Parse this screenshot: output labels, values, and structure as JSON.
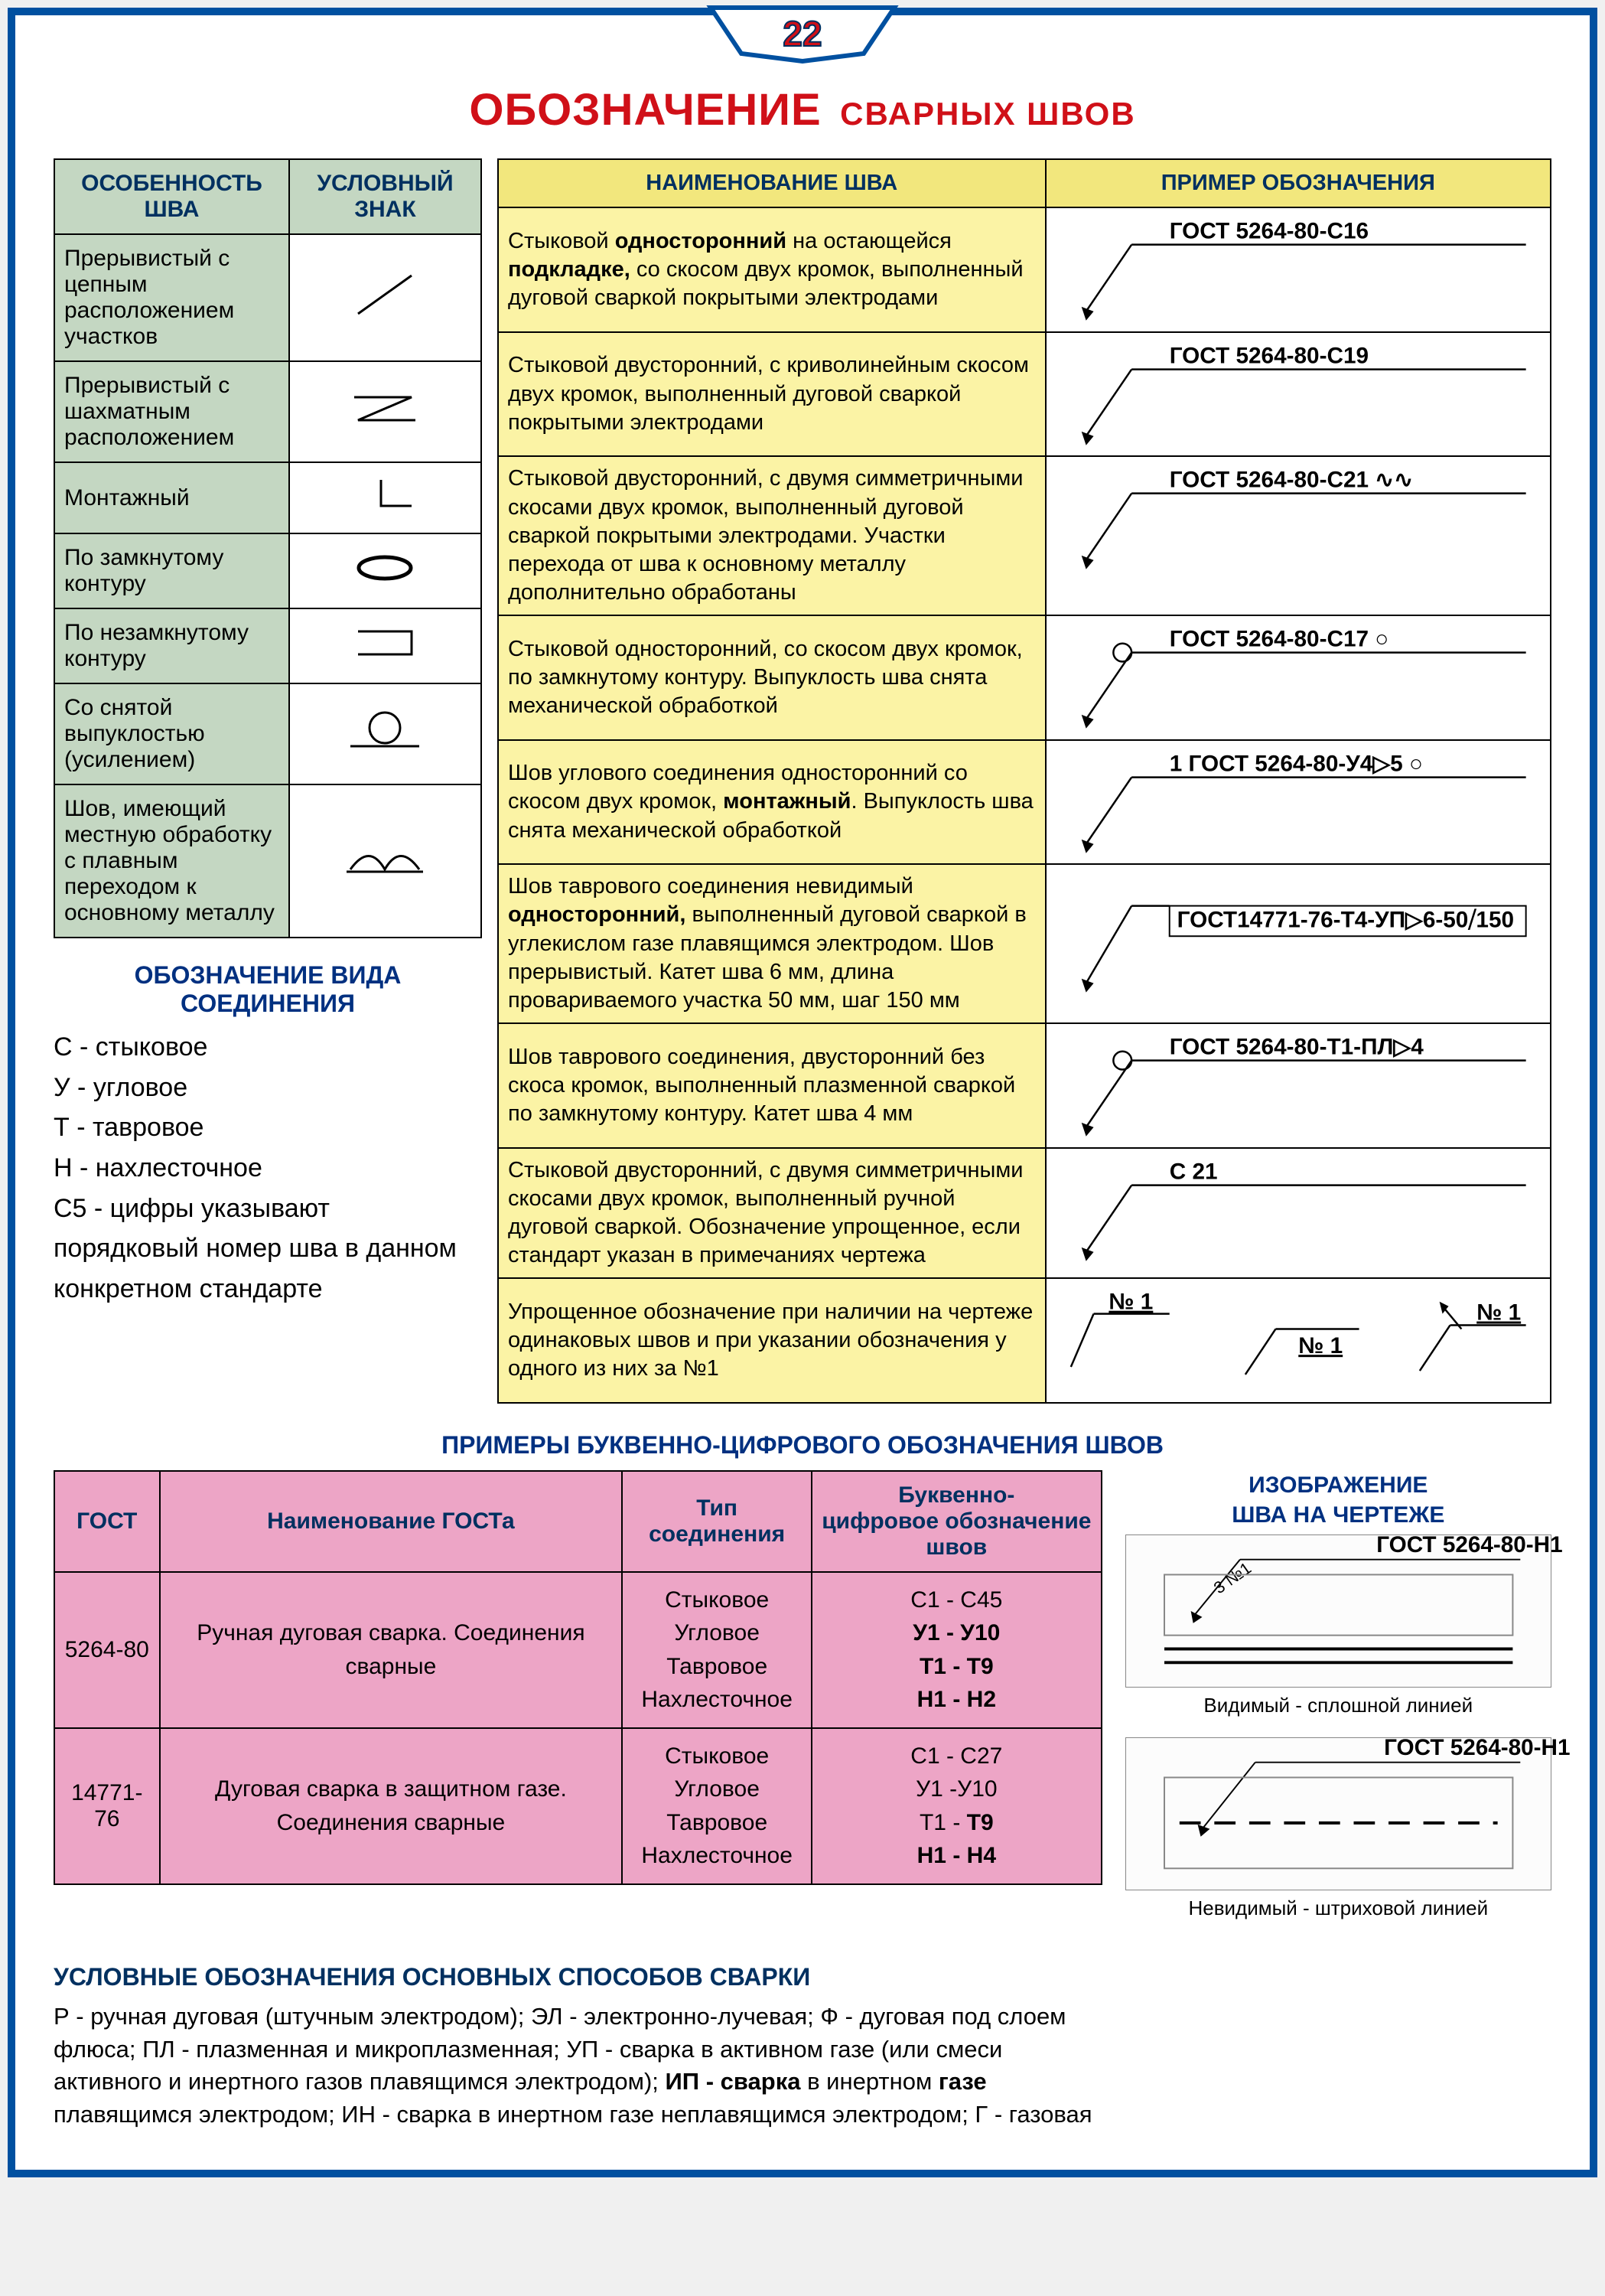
{
  "page_number": "22",
  "colors": {
    "frame": "#0050a0",
    "title_red": "#d01018",
    "header_blue": "#003060",
    "green_bg": "#c4d7c2",
    "yellow_header": "#f2e77d",
    "yellow_cell": "#fbf3a5",
    "pink_bg": "#eda5c6"
  },
  "title_main": "ОБОЗНАЧЕНИЕ",
  "title_sub": "СВАРНЫХ   ШВОВ",
  "green_header_left": "ОСОБЕННОСТЬ ШВА",
  "green_header_right": "УСЛОВНЫЙ ЗНАК",
  "green_rows": [
    {
      "label": "Прерывистый с цепным расположением участков",
      "symbol": "slash"
    },
    {
      "label": "Прерывистый с шахматным расположением",
      "symbol": "zigzag"
    },
    {
      "label": "Монтажный",
      "symbol": "corner"
    },
    {
      "label": "По замкнутому контуру",
      "symbol": "ellipse-filled"
    },
    {
      "label": "По незамкнутому контуру",
      "symbol": "rect-open"
    },
    {
      "label": "Со снятой выпуклостью (усилением)",
      "symbol": "circle-line"
    },
    {
      "label": "Шов, имеющий местную обработку с плавным переходом к основному металлу",
      "symbol": "double-arc"
    }
  ],
  "conn_title": "ОБОЗНАЧЕНИЕ ВИДА СОЕДИНЕНИЯ",
  "conn_list_html": "С - стыковое<br>У - угловое<br>Т - тавровое<br>Н - нахлесточное<br>С5 - цифры указывают порядковый номер шва в данном конкретном стандарте",
  "yellow_header_left": "НАИМЕНОВАНИЕ ШВА",
  "yellow_header_right": "ПРИМЕР ОБОЗНАЧЕНИЯ",
  "yellow_rows": [
    {
      "desc": "Стыковой <b>односторонний</b> на остающейся <b>подкладке,</b> со скосом двух кромок, выполненный дуговой сваркой покрытыми электродами",
      "ex": "ГОСТ 5264-80-С16",
      "leader": "plain"
    },
    {
      "desc": "Стыковой двусторонний, с криволинейным скосом двух кромок, выполненный дуговой сваркой покрытыми электродами",
      "ex": "ГОСТ 5264-80-С19",
      "leader": "plain"
    },
    {
      "desc": "Стыковой двусторонний, с двумя симметричными скосами двух кромок, выполненный дуговой сваркой покрытыми электродами. Участки перехода от шва к основному металлу дополнительно обработаны",
      "ex": "ГОСТ 5264-80-С21 ∿∿",
      "leader": "plain"
    },
    {
      "desc": "Стыковой односторонний, со скосом двух кромок, по замкнутому контуру. Выпуклость шва снята механической обработкой",
      "ex": "ГОСТ 5264-80-С17  ○",
      "leader": "circle"
    },
    {
      "desc": "Шов углового соединения односторонний со скосом двух кромок, <b>монтажный</b>. Выпуклость шва снята механической обработкой",
      "ex": "1   ГОСТ 5264-80-У4▷5  ○",
      "leader": "plain"
    },
    {
      "desc": "Шов таврового соединения невидимый <b>односторонний,</b> выполненный дуговой сваркой в углекислом газе плавящимся электродом. Шов прерывистый. Катет шва 6 мм, длина провариваемого участка 50 мм, шаг 150 мм",
      "ex": "ГОСТ14771-76-Т4-УП▷6-50⧸150",
      "leader": "below-box"
    },
    {
      "desc": "Шов таврового соединения, двусторонний без скоса кромок, выполненный плазменной сваркой по замкнутому контуру. Катет шва 4 мм",
      "ex": "ГОСТ 5264-80-Т1-ПЛ▷4",
      "leader": "circle"
    },
    {
      "desc": "Стыковой двусторонний, с двумя симметричными скосами двух кромок, выполненный ручной дуговой сваркой. Обозначение упрощенное, если стандарт указан в примечаниях чертежа",
      "ex": "С 21",
      "leader": "plain"
    },
    {
      "desc": "Упрощенное обозначение при наличии на чертеже одинаковых швов и при указании обозначения у одного из них за №1",
      "ex": "multi-no1",
      "leader": "multi"
    }
  ],
  "pink_title": "ПРИМЕРЫ БУКВЕННО-ЦИФРОВОГО ОБОЗНАЧЕНИЯ ШВОВ",
  "pink_headers": [
    "ГОСТ",
    "Наименование ГОСТа",
    "Тип соединения",
    "Буквенно-цифровое обозначение швов"
  ],
  "pink_rows": [
    {
      "gost": "5264-80",
      "name": "Ручная дуговая сварка. Соединения сварные",
      "types": "Стыковое<br>Угловое<br>Тавровое<br>Нахлесточное",
      "codes": "С1 - С45<br><b>У1 - У10</b><br><b>Т1 - Т9</b><br><b>Н1 - Н2</b>"
    },
    {
      "gost": "14771-76",
      "name": "Дуговая сварка в защитном газе. Соединения сварные",
      "types": "Стыковое<br>Угловое<br>Тавровое<br>Нахлесточное",
      "codes": "С1 - С27<br>У1 -У10<br>Т1 - <b>Т9</b><br><b>Н1 - Н4</b>"
    }
  ],
  "img_title": "ИЗОБРАЖЕНИЕ ШВА НА ЧЕРТЕЖЕ",
  "draw_label_top": "ГОСТ 5264-80-Н1",
  "draw_annot_top": "3 №1",
  "draw_caption_top": "Видимый - сплошной линией",
  "draw_label_bot": "ГОСТ 5264-80-Н1",
  "draw_caption_bot": "Невидимый - штриховой линией",
  "methods_title": "УСЛОВНЫЕ ОБОЗНАЧЕНИЯ ОСНОВНЫХ СПОСОБОВ СВАРКИ",
  "methods_body": "Р - ручная дуговая (штучным электродом); ЭЛ - электронно-лучевая; Ф - дуговая под слоем флюса; ПЛ - плазменная и микроплазменная; УП - сварка в активном газе (или смеси активного и инертного газов плавящимся электродом); <b>ИП - сварка</b> в инертном <b>газе</b> плавящимся электродом; ИН - сварка в инертном газе неплавящимся электродом; Г - газовая"
}
